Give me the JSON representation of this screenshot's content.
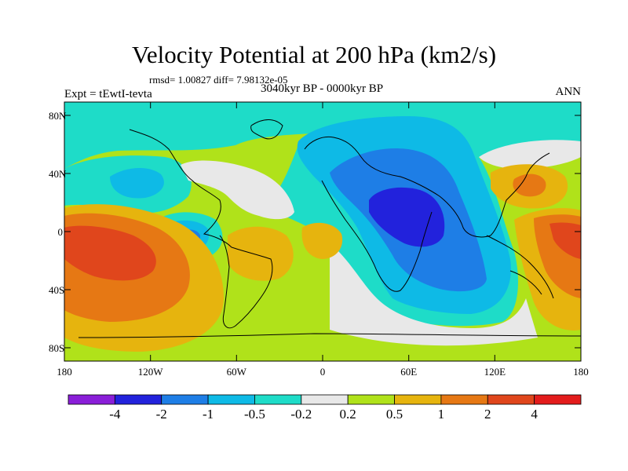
{
  "title": "Velocity Potential at 200 hPa (km2/s)",
  "stats": "rmsd= 1.00827 diff= 7.98132e-05",
  "expt": "Expt = tEwtI-tevta",
  "period": "3040kyr BP - 0000kyr BP",
  "season": "ANN",
  "axes": {
    "lat_ticks": [
      "80N",
      "40N",
      "0",
      "40S",
      "80S"
    ],
    "lon_ticks": [
      "180",
      "120W",
      "60W",
      "0",
      "60E",
      "120E",
      "180"
    ]
  },
  "colorbar": {
    "labels": [
      "-4",
      "-2",
      "-1",
      "-0.5",
      "-0.2",
      "0.2",
      "0.5",
      "1",
      "2",
      "4"
    ],
    "colors": [
      "#8a1ed8",
      "#2222dc",
      "#1e7ee6",
      "#0ebae6",
      "#1edcc8",
      "#e8e8e8",
      "#b0e21a",
      "#e6b40e",
      "#e67814",
      "#e0461c",
      "#e31c1c"
    ]
  },
  "map_colors": {
    "neg1": "#0ebae6",
    "neg05": "#1edcc8",
    "neg2": "#1e7ee6",
    "neg4": "#2222dc",
    "zero": "#e8e8e8",
    "pos02": "#b0e21a",
    "pos05": "#e6b40e",
    "pos1": "#e67814",
    "pos2": "#e0461c"
  }
}
